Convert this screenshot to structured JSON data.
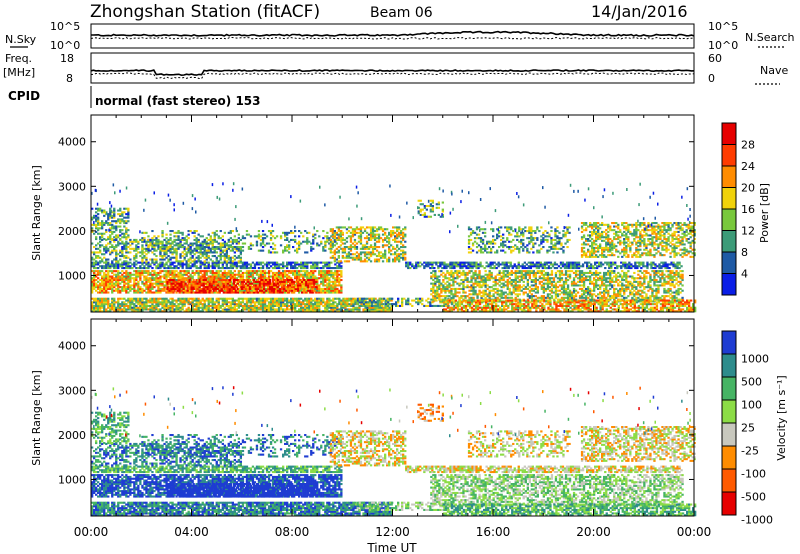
{
  "header": {
    "title": "Zhongshan Station (fitACF)",
    "beam": "Beam 06",
    "date": "14/Jan/2016"
  },
  "status_panels": {
    "nsky": {
      "label": "N.Sky",
      "ticks": [
        "10^5",
        "10^0"
      ]
    },
    "nsearch": {
      "label": "N.Search",
      "ticks": [
        "10^5",
        "10^0"
      ]
    },
    "freq": {
      "label_line1": "Freq.",
      "label_line2": "[MHz]",
      "ticks": [
        "18",
        "8"
      ]
    },
    "nave": {
      "label": "Nave",
      "ticks": [
        "60",
        "0"
      ]
    },
    "cpid": {
      "label": "CPID",
      "value": "normal (fast stereo) 153"
    }
  },
  "chart_data": [
    {
      "type": "heatmap",
      "panel": "power",
      "ylabel": "Slant Range [km]",
      "yticks": [
        1000,
        2000,
        3000,
        4000
      ],
      "ylim": [
        180,
        4600
      ],
      "colorbar_label": "Power [dB]",
      "colorbar_ticks": [
        4,
        8,
        12,
        16,
        20,
        24,
        28
      ],
      "colors": [
        "#0a1ee6",
        "#1e5aa5",
        "#3c9b78",
        "#78c83c",
        "#f0d20a",
        "#ff8c00",
        "#ff3c00",
        "#e60000"
      ]
    },
    {
      "type": "heatmap",
      "panel": "velocity",
      "ylabel": "Slant Range [km]",
      "yticks": [
        1000,
        2000,
        3000,
        4000
      ],
      "ylim": [
        180,
        4600
      ],
      "colorbar_label": "Velocity [m s⁻¹]",
      "colorbar_ticks": [
        1000,
        500,
        100,
        25,
        -25,
        -100,
        -500,
        -1000
      ],
      "colorbar_tick_labels": [
        "1000",
        "500",
        "100",
        "25",
        "-25",
        "-100",
        "-500",
        "-1000"
      ],
      "colors": [
        "#1e3cd2",
        "#2d8c8c",
        "#46b464",
        "#8cdc46",
        "#c8c8be",
        "#ff8c00",
        "#ff5a00",
        "#e60000"
      ]
    }
  ],
  "x_axis": {
    "ticks": [
      "00:00",
      "04:00",
      "08:00",
      "12:00",
      "16:00",
      "20:00",
      "00:00"
    ],
    "label": "Time UT"
  }
}
